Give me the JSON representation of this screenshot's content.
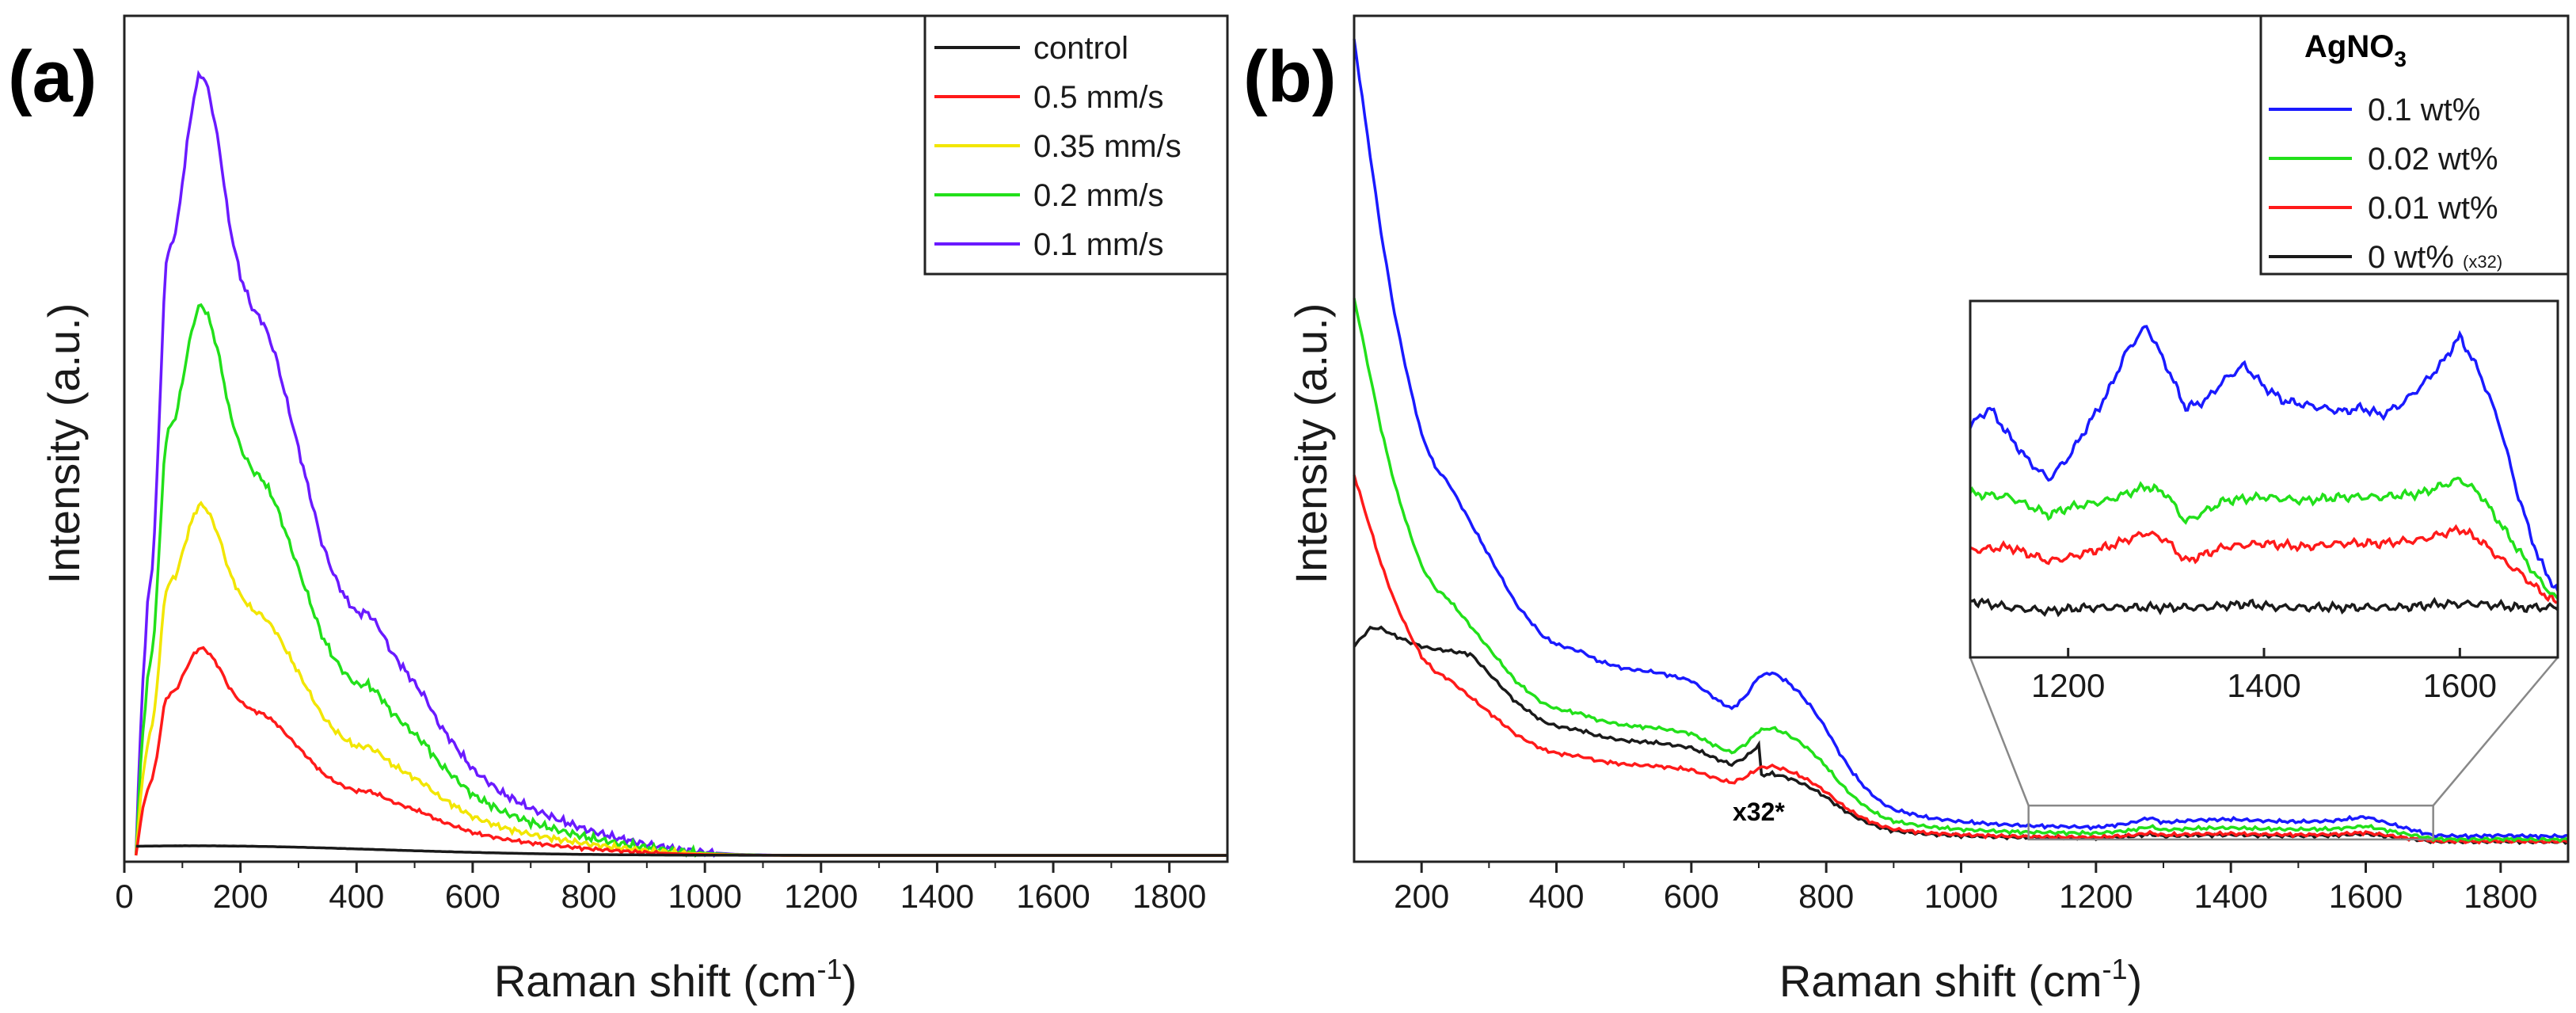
{
  "chart_data": [
    {
      "panel_label": "(a)",
      "type": "line",
      "xlabel": "Raman shift (cm",
      "xlabel_sup": "-1",
      "xlabel_end": ")",
      "ylabel": "Intensity (a.u.)",
      "xlim": [
        0,
        1900
      ],
      "ylim": [
        0,
        100
      ],
      "xticks": [
        0,
        200,
        400,
        600,
        800,
        1000,
        1200,
        1400,
        1600,
        1800
      ],
      "legend_position": "top-right",
      "series": [
        {
          "name": "control",
          "color": "#1a1a1a",
          "peak": 1.2
        },
        {
          "name": "0.5 mm/s",
          "color": "#ff1a1a",
          "peak": 26
        },
        {
          "name": "0.35 mm/s",
          "color": "#f2e600",
          "peak": 44
        },
        {
          "name": "0.2 mm/s",
          "color": "#22e01a",
          "peak": 69
        },
        {
          "name": "0.1 mm/s",
          "color": "#6a1aff",
          "peak": 98
        }
      ],
      "shape_x": [
        20,
        30,
        40,
        50,
        60,
        70,
        80,
        90,
        100,
        110,
        120,
        130,
        140,
        150,
        160,
        170,
        180,
        200,
        220,
        240,
        260,
        280,
        300,
        320,
        340,
        360,
        380,
        400,
        420,
        440,
        460,
        480,
        500,
        520,
        540,
        560,
        580,
        600,
        650,
        700,
        750,
        800,
        850,
        900,
        950,
        1000,
        1050,
        1100,
        1150,
        1200,
        1400,
        1600,
        1800,
        1900
      ],
      "shape_y": [
        0,
        20,
        32,
        38,
        55,
        75,
        78,
        80,
        86,
        92,
        97,
        100,
        99,
        96,
        92,
        87,
        81,
        74,
        70,
        68,
        64,
        58,
        52,
        46,
        40,
        36,
        33,
        31,
        31,
        29,
        26,
        24,
        22,
        20,
        17,
        15,
        13,
        11,
        8,
        6,
        4.5,
        3.2,
        2.2,
        1.4,
        0.8,
        0.4,
        0.15,
        0.05,
        0,
        0,
        0,
        0,
        0,
        0
      ]
    },
    {
      "panel_label": "(b)",
      "type": "line",
      "xlabel": "Raman shift (cm",
      "xlabel_sup": "-1",
      "xlabel_end": ")",
      "ylabel": "Intensity (a.u.)",
      "xlim": [
        100,
        1900
      ],
      "ylim": [
        0,
        100
      ],
      "xticks": [
        200,
        400,
        600,
        800,
        1000,
        1200,
        1400,
        1600,
        1800
      ],
      "legend_position": "top-right",
      "legend_title": "AgNO",
      "legend_title_sub": "3",
      "annotation": "x32*",
      "series": [
        {
          "name": "0.1 wt%",
          "name_suffix": "",
          "color": "#1a1aff",
          "scale": 1.0
        },
        {
          "name": "0.02 wt%",
          "name_suffix": "",
          "color": "#22e01a",
          "scale": 0.68
        },
        {
          "name": "0.01 wt%",
          "name_suffix": "",
          "color": "#ff1a1a",
          "scale": 0.46
        },
        {
          "name": "0 wt%",
          "name_suffix": "(x32)",
          "color": "#1a1a1a",
          "scale": 0.27
        }
      ],
      "shape_x": [
        100,
        110,
        120,
        130,
        140,
        150,
        160,
        180,
        200,
        220,
        240,
        260,
        280,
        300,
        320,
        340,
        360,
        380,
        400,
        420,
        440,
        460,
        480,
        500,
        550,
        600,
        640,
        660,
        680,
        700,
        720,
        740,
        760,
        780,
        800,
        820,
        840,
        860,
        880,
        900,
        950,
        1000,
        1050,
        1100,
        1150,
        1200,
        1250,
        1280,
        1300,
        1350,
        1400,
        1450,
        1500,
        1550,
        1600,
        1650,
        1700,
        1750,
        1800,
        1850,
        1900
      ],
      "shape_y": [
        100,
        94,
        88,
        82,
        76,
        71,
        66,
        58,
        51,
        47,
        45,
        42,
        39,
        36,
        33,
        30,
        28,
        26,
        25,
        24.5,
        24,
        23,
        22.5,
        22,
        21.5,
        20.5,
        18,
        17,
        18.5,
        21,
        21.5,
        20.5,
        19,
        17,
        14.5,
        11.5,
        9,
        7,
        5.5,
        4.5,
        3.5,
        3.0,
        2.7,
        2.5,
        2.4,
        2.3,
        2.8,
        3.5,
        2.9,
        3.2,
        3.3,
        3.1,
        3.0,
        3.1,
        3.6,
        2.4,
        1.3,
        1.2,
        1.3,
        1.2,
        1.2
      ]
    }
  ],
  "inset": {
    "xlim": [
      1100,
      1700
    ],
    "xticks": [
      1200,
      1400,
      1600
    ],
    "ylim": [
      0,
      100
    ],
    "series": [
      {
        "name": "0.1 wt%",
        "color": "#1a1aff",
        "x": [
          1100,
          1120,
          1140,
          1160,
          1180,
          1200,
          1220,
          1240,
          1260,
          1280,
          1300,
          1320,
          1340,
          1360,
          1380,
          1400,
          1420,
          1440,
          1460,
          1480,
          1500,
          1520,
          1540,
          1560,
          1580,
          1600,
          1620,
          1640,
          1660,
          1680,
          1700
        ],
        "y": [
          65,
          70,
          62,
          55,
          50,
          56,
          65,
          74,
          86,
          93,
          82,
          70,
          72,
          78,
          82,
          76,
          72,
          71,
          70,
          69,
          70,
          68,
          71,
          76,
          82,
          90,
          80,
          66,
          45,
          28,
          18
        ]
      },
      {
        "name": "0.02 wt%",
        "color": "#22e01a",
        "x": [
          1100,
          1140,
          1180,
          1200,
          1240,
          1280,
          1300,
          1320,
          1360,
          1400,
          1440,
          1480,
          1520,
          1560,
          1600,
          1620,
          1640,
          1660,
          1680,
          1700
        ],
        "y": [
          46,
          45,
          40,
          42,
          44,
          48,
          46,
          38,
          44,
          45,
          44,
          45,
          45,
          46,
          50,
          46,
          38,
          30,
          22,
          16
        ]
      },
      {
        "name": "0.01 wt%",
        "color": "#ff1a1a",
        "x": [
          1100,
          1140,
          1180,
          1200,
          1240,
          1280,
          1300,
          1320,
          1360,
          1400,
          1440,
          1480,
          1520,
          1560,
          1600,
          1620,
          1640,
          1660,
          1680,
          1700
        ],
        "y": [
          30,
          31,
          27,
          28,
          31,
          35,
          33,
          27,
          31,
          32,
          31,
          32,
          32,
          33,
          36,
          33,
          28,
          24,
          19,
          15
        ]
      },
      {
        "name": "0 wt%",
        "color": "#1a1a1a",
        "x": [
          1100,
          1140,
          1180,
          1220,
          1260,
          1300,
          1340,
          1380,
          1420,
          1460,
          1500,
          1540,
          1580,
          1620,
          1660,
          1700
        ],
        "y": [
          16,
          14,
          13,
          14,
          14,
          14,
          14,
          15,
          14,
          14,
          14,
          14,
          15,
          15,
          14,
          14
        ]
      }
    ]
  }
}
